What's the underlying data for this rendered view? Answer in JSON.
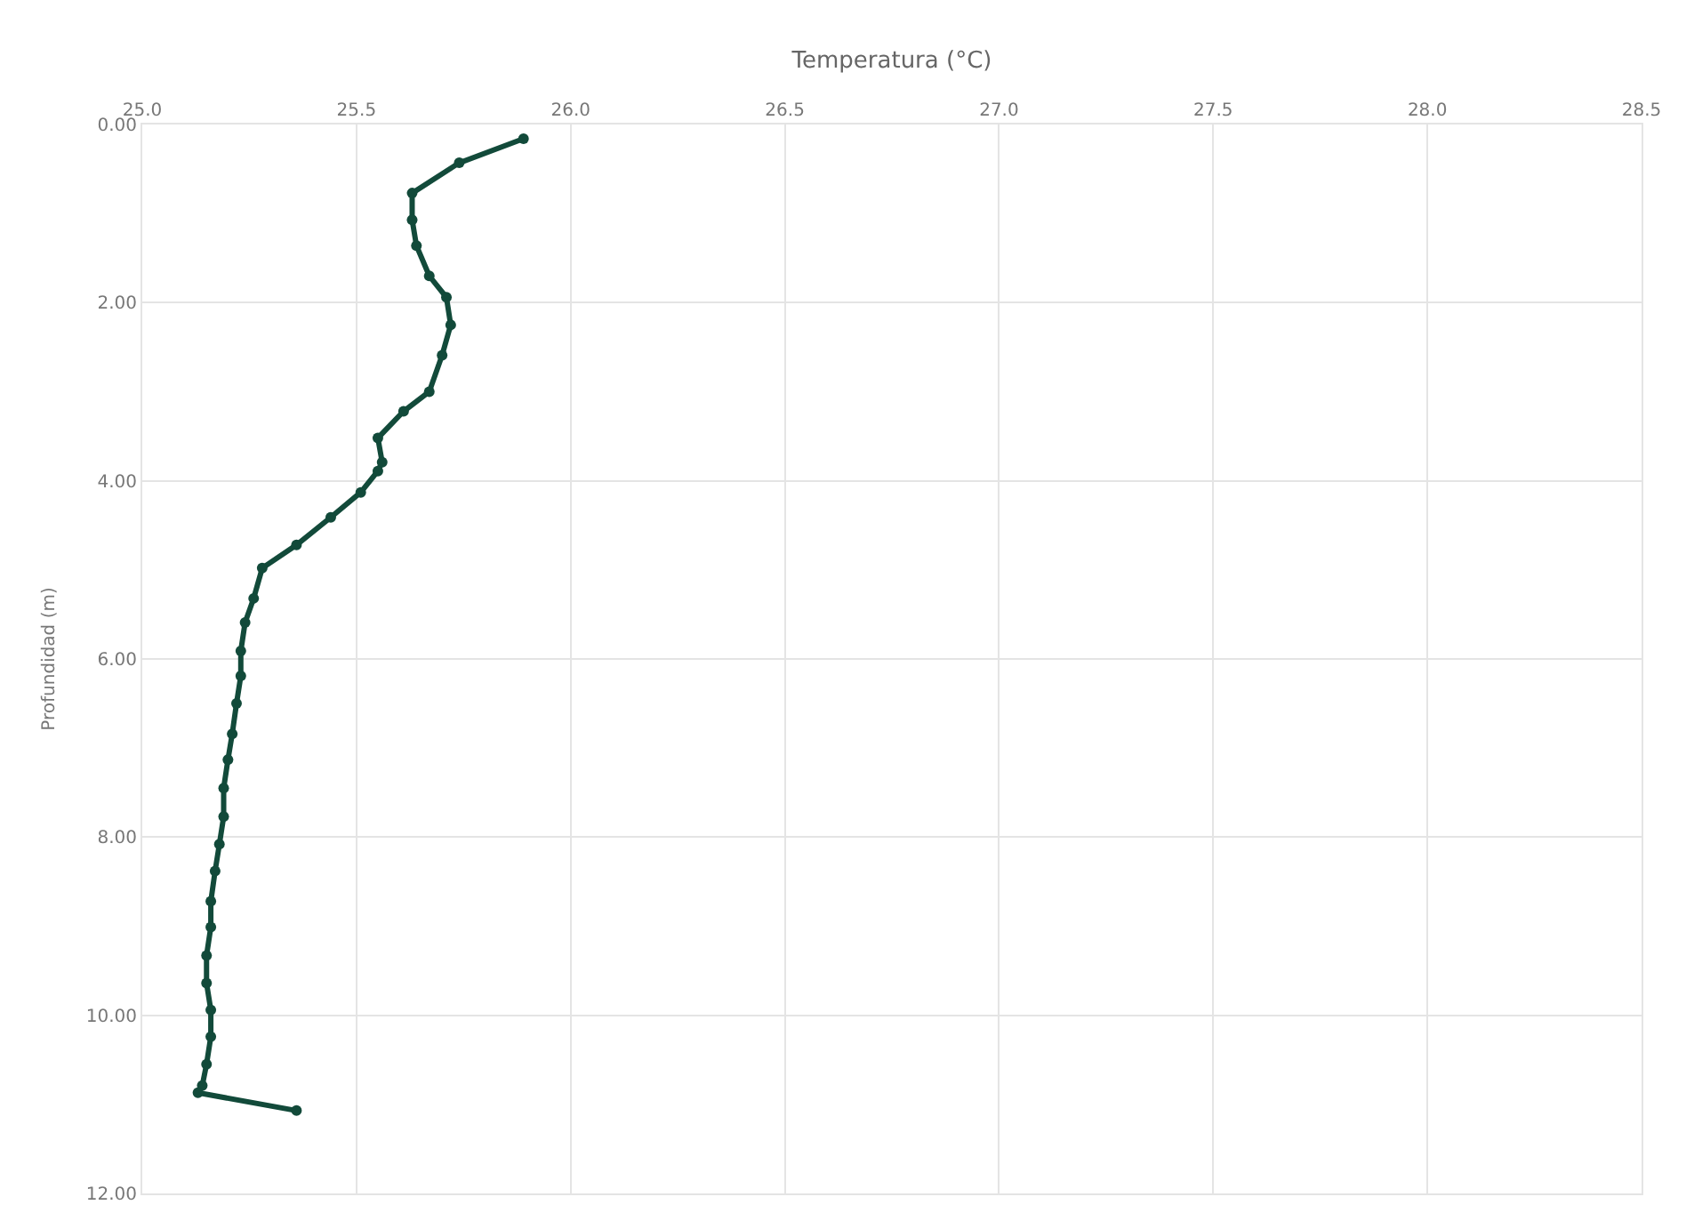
{
  "chart_data": {
    "type": "line",
    "xlabel": "Temperatura (°C)",
    "ylabel": "Profundidad (m)",
    "xlim": [
      25.0,
      28.5
    ],
    "xticks": [
      {
        "value": 25.0,
        "label": "25.0"
      },
      {
        "value": 25.5,
        "label": "25.5"
      },
      {
        "value": 26.0,
        "label": "26.0"
      },
      {
        "value": 26.5,
        "label": "26.5"
      },
      {
        "value": 27.0,
        "label": "27.0"
      },
      {
        "value": 27.5,
        "label": "27.5"
      },
      {
        "value": 28.0,
        "label": "28.0"
      },
      {
        "value": 28.5,
        "label": "28.5"
      }
    ],
    "ylim": [
      12,
      0
    ],
    "yticks": [
      {
        "value": 0,
        "label": "0.00"
      },
      {
        "value": 2,
        "label": "2.00"
      },
      {
        "value": 4,
        "label": "4.00"
      },
      {
        "value": 6,
        "label": "6.00"
      },
      {
        "value": 8,
        "label": "8.00"
      },
      {
        "value": 10,
        "label": "10.00"
      },
      {
        "value": 12,
        "label": "12.00"
      }
    ],
    "grid": true,
    "marker": "circle",
    "line_style": "solid",
    "series": [
      {
        "color": "#124a3a",
        "x": [
          25.89,
          25.74,
          25.63,
          25.63,
          25.64,
          25.67,
          25.71,
          25.72,
          25.7,
          25.67,
          25.61,
          25.55,
          25.56,
          25.55,
          25.51,
          25.44,
          25.36,
          25.28,
          25.26,
          25.24,
          25.23,
          25.23,
          25.22,
          25.21,
          25.2,
          25.19,
          25.19,
          25.18,
          25.17,
          25.16,
          25.16,
          25.15,
          25.15,
          25.16,
          25.16,
          25.15,
          25.14,
          25.13,
          25.36
        ],
        "values": [
          0.16,
          0.43,
          0.77,
          1.07,
          1.36,
          1.7,
          1.94,
          2.25,
          2.59,
          3.0,
          3.22,
          3.52,
          3.79,
          3.89,
          4.13,
          4.41,
          4.72,
          4.98,
          5.32,
          5.59,
          5.91,
          6.19,
          6.5,
          6.84,
          7.13,
          7.45,
          7.77,
          8.08,
          8.38,
          8.72,
          9.01,
          9.33,
          9.64,
          9.94,
          10.24,
          10.55,
          10.79,
          10.87,
          11.07
        ]
      }
    ]
  }
}
